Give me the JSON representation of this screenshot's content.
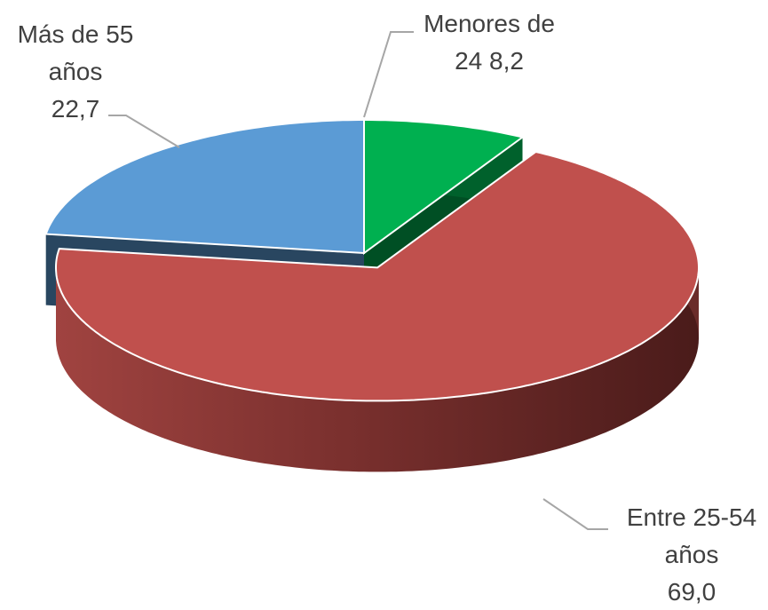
{
  "chart_data": {
    "type": "pie",
    "categories": [
      "Menores de 24",
      "Entre 25-54 años",
      "Más de 55 años"
    ],
    "values": [
      8.2,
      69.0,
      22.7
    ],
    "value_labels": [
      "8,2",
      "69,0",
      "22,7"
    ],
    "colors": [
      "#00b050",
      "#c0504d",
      "#5b9bd5"
    ]
  }
}
